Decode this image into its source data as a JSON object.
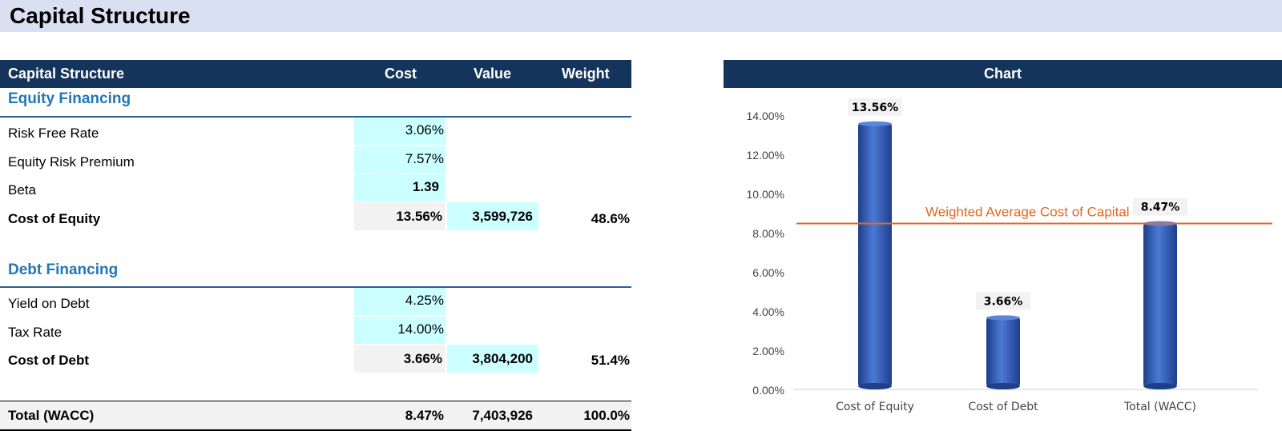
{
  "page": {
    "title": "Capital Structure"
  },
  "table": {
    "headers": {
      "name": "Capital Structure",
      "cost": "Cost",
      "value": "Value",
      "weight": "Weight"
    },
    "equity": {
      "section": "Equity Financing",
      "risk_free_rate": {
        "label": "Risk Free Rate",
        "value": "3.06%"
      },
      "equity_risk_premium": {
        "label": "Equity Risk Premium",
        "value": "7.57%"
      },
      "beta": {
        "label": "Beta",
        "value": "1.39"
      },
      "cost_of_equity": {
        "label": "Cost of Equity",
        "cost": "13.56%",
        "value": "3,599,726",
        "weight": "48.6%"
      }
    },
    "debt": {
      "section": "Debt Financing",
      "yield_on_debt": {
        "label": "Yield on Debt",
        "value": "4.25%"
      },
      "tax_rate": {
        "label": "Tax Rate",
        "value": "14.00%"
      },
      "cost_of_debt": {
        "label": "Cost of Debt",
        "cost": "3.66%",
        "value": "3,804,200",
        "weight": "51.4%"
      }
    },
    "total": {
      "label": "Total (WACC)",
      "cost": "8.47%",
      "value": "7,403,926",
      "weight": "100.0%"
    }
  },
  "chart_panel": {
    "header": "Chart"
  },
  "chart_data": {
    "type": "bar",
    "categories": [
      "Cost of Equity",
      "Cost of Debt",
      "Total (WACC)"
    ],
    "values": [
      13.56,
      3.66,
      8.47
    ],
    "data_labels": [
      "13.56%",
      "3.66%",
      "8.47%"
    ],
    "ylim": [
      0,
      14
    ],
    "yticks": [
      0,
      2,
      4,
      6,
      8,
      10,
      12,
      14
    ],
    "ytick_labels": [
      "0.00%",
      "2.00%",
      "4.00%",
      "6.00%",
      "8.00%",
      "10.00%",
      "12.00%",
      "14.00%"
    ],
    "grid": false,
    "reference_line": {
      "value": 8.47,
      "label": "Weighted  Average Cost of Capital",
      "color": "#e06a25"
    },
    "bar_color": "#3a66c4"
  }
}
